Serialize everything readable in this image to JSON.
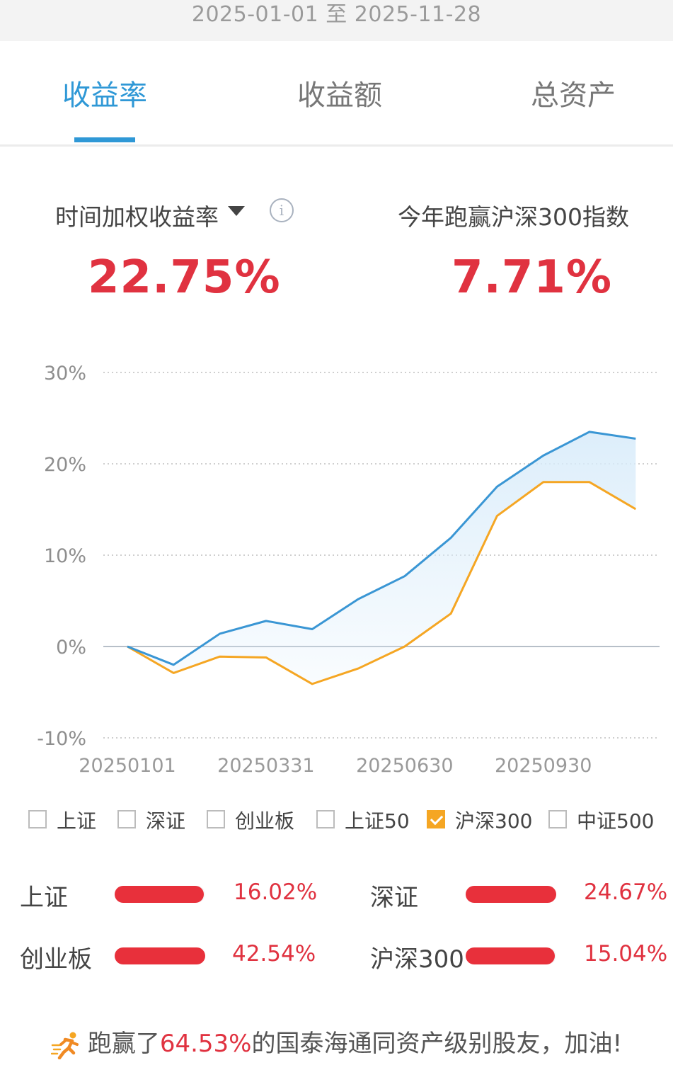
{
  "date_range": "2025-01-01 至 2025-11-28",
  "tabs": [
    {
      "label": "收益率",
      "active": true
    },
    {
      "label": "收益额",
      "active": false
    },
    {
      "label": "总资产",
      "active": false
    }
  ],
  "metrics": {
    "left_label": "时间加权收益率",
    "left_value": "22.75%",
    "right_label": "今年跑赢沪深300指数",
    "right_value": "7.71%"
  },
  "chart_data": {
    "type": "line",
    "ylim": [
      -10,
      30
    ],
    "y_ticks": [
      "30%",
      "20%",
      "10%",
      "0%",
      "-10%"
    ],
    "x_tick_labels": [
      "20250101",
      "20250331",
      "20250630",
      "20250930"
    ],
    "x": [
      "20250101",
      "20250131",
      "20250228",
      "20250331",
      "20250430",
      "20250531",
      "20250630",
      "20250731",
      "20250831",
      "20250930",
      "20251031",
      "20251128"
    ],
    "series": [
      {
        "name": "收益率",
        "color": "#3a96d4",
        "values": [
          0,
          -2.0,
          1.4,
          2.8,
          1.9,
          5.2,
          7.7,
          11.9,
          17.5,
          20.9,
          23.5,
          22.75
        ]
      },
      {
        "name": "沪深300",
        "color": "#f5a623",
        "values": [
          0,
          -2.9,
          -1.1,
          -1.2,
          -4.1,
          -2.4,
          0,
          3.6,
          14.3,
          18.0,
          18.0,
          15.04
        ]
      }
    ],
    "grid": true,
    "colors": {
      "grid": "#cfcfcf",
      "zero_line": "#b7bfc8",
      "fill": "#d9ecfa"
    }
  },
  "legend": [
    {
      "label": "上证",
      "checked": false
    },
    {
      "label": "深证",
      "checked": false
    },
    {
      "label": "创业板",
      "checked": false
    },
    {
      "label": "上证50",
      "checked": false
    },
    {
      "label": "沪深300",
      "checked": true
    },
    {
      "label": "中证500",
      "checked": false
    }
  ],
  "index_returns": [
    {
      "label": "上证",
      "value": "16.02%"
    },
    {
      "label": "深证",
      "value": "24.67%"
    },
    {
      "label": "创业板",
      "value": "42.54%"
    },
    {
      "label": "沪深300",
      "value": "15.04%"
    }
  ],
  "footer": {
    "prefix": "跑赢了",
    "highlight": "64.53%",
    "suffix": "的国泰海通同资产级别股友，加油!"
  },
  "colors": {
    "accent": "#2f98d6",
    "positive": "#e03240",
    "benchmark": "#f5a623"
  }
}
